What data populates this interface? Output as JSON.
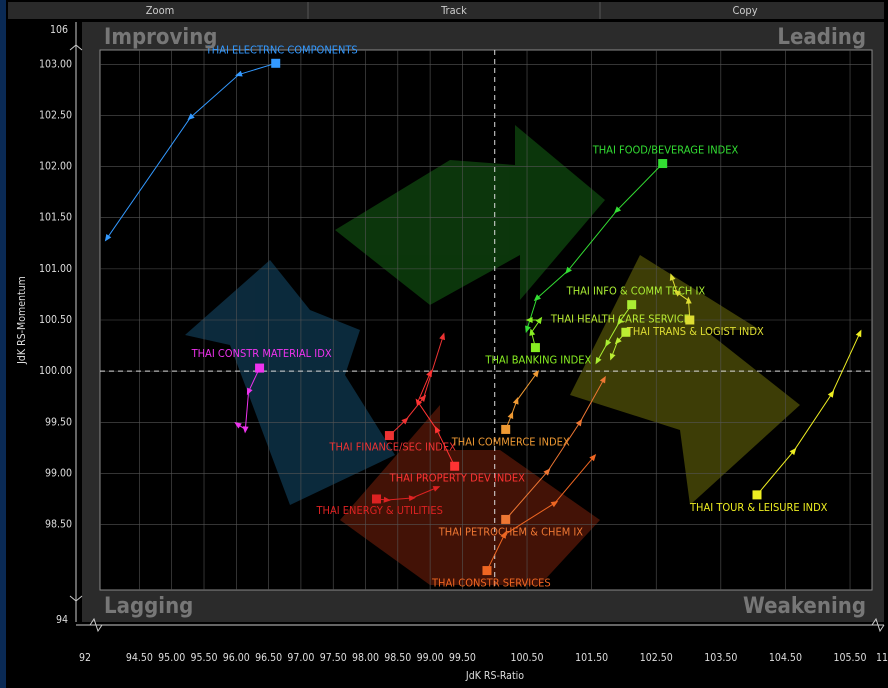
{
  "toolbar": [
    "Zoom",
    "Track",
    "Copy"
  ],
  "chart_data": {
    "type": "rrg",
    "x_label": "JdK RS-Ratio",
    "y_label": "JdK RS-Momentum",
    "quadrants": [
      "Improving",
      "Leading",
      "Lagging",
      "Weakening"
    ],
    "x_break_labels": [
      "92",
      "11"
    ],
    "y_break_labels": [
      "106",
      "94"
    ],
    "center": [
      100,
      100
    ],
    "xlim": [
      93.89,
      105.84
    ],
    "ylim": [
      97.86,
      103.14
    ],
    "xticks": [
      {
        "value": 94.5,
        "label": "94.50"
      },
      {
        "value": 95,
        "label": "95.00"
      },
      {
        "value": 95.5,
        "label": "95.50"
      },
      {
        "value": 96,
        "label": "96.00"
      },
      {
        "value": 96.5,
        "label": "96.50"
      },
      {
        "value": 97,
        "label": "97.00"
      },
      {
        "value": 97.5,
        "label": "97.50"
      },
      {
        "value": 98,
        "label": "98.00"
      },
      {
        "value": 98.5,
        "label": "98.50"
      },
      {
        "value": 99,
        "label": "99.00"
      },
      {
        "value": 99.5,
        "label": "99.50"
      },
      {
        "value": 100.5,
        "label": "100.50"
      },
      {
        "value": 101.5,
        "label": "101.50"
      },
      {
        "value": 102.5,
        "label": "102.50"
      },
      {
        "value": 103.5,
        "label": "103.50"
      },
      {
        "value": 104.5,
        "label": "104.50"
      },
      {
        "value": 105.5,
        "label": "105.50"
      }
    ],
    "yticks": [
      {
        "value": 98.5,
        "label": "98.50"
      },
      {
        "value": 99,
        "label": "99.00"
      },
      {
        "value": 99.5,
        "label": "99.50"
      },
      {
        "value": 100,
        "label": "100.00"
      },
      {
        "value": 100.5,
        "label": "100.50"
      },
      {
        "value": 101,
        "label": "101.00"
      },
      {
        "value": 101.5,
        "label": "101.50"
      },
      {
        "value": 102,
        "label": "102.00"
      },
      {
        "value": 102.5,
        "label": "102.50"
      },
      {
        "value": 103,
        "label": "103.00"
      }
    ],
    "grid": true,
    "series": [
      {
        "name": "THAI ELECTRNC COMPONENTS",
        "color": "#3399ff",
        "x": [
          94.0,
          95.29,
          96.04,
          96.61
        ],
        "values": [
          101.3,
          102.48,
          102.9,
          103.01
        ]
      },
      {
        "name": "THAI FOOD/BEVERAGE INDEX",
        "color": "#33dd33",
        "x": [
          100.5,
          100.65,
          101.13,
          101.89,
          102.6
        ],
        "values": [
          100.41,
          100.71,
          100.98,
          101.57,
          102.03
        ]
      },
      {
        "name": "THAI BANKING INDEX",
        "color": "#88ee22",
        "x": [
          100.54,
          100.7,
          100.57,
          100.63
        ],
        "values": [
          100.5,
          100.5,
          100.38,
          100.23
        ]
      },
      {
        "name": "THAI INFO & COMM TECH IX",
        "color": "#aaee33",
        "x": [
          101.59,
          101.74,
          101.93,
          102.12
        ],
        "values": [
          100.1,
          100.27,
          100.48,
          100.65
        ]
      },
      {
        "name": "THAI HEALTH CARE SERVICE",
        "color": "#bbee33",
        "x": [
          101.81,
          101.9,
          102.03
        ],
        "values": [
          100.14,
          100.29,
          100.38
        ]
      },
      {
        "name": "THAI TRANS & LOGIST INDX",
        "color": "#dddd33",
        "x": [
          102.74,
          102.82,
          103.0,
          103.02
        ],
        "values": [
          100.92,
          100.77,
          100.69,
          100.5
        ]
      },
      {
        "name": "THAI TOUR & LEISURE INDX",
        "color": "#eeee22",
        "x": [
          105.65,
          105.22,
          104.63,
          104.06
        ],
        "values": [
          100.37,
          99.78,
          99.22,
          98.79
        ]
      },
      {
        "name": "THAI CONSTR MATERIAL IDX",
        "color": "#ee33ee",
        "x": [
          96.02,
          96.14,
          96.19,
          96.36
        ],
        "values": [
          99.48,
          99.43,
          99.8,
          100.03
        ]
      },
      {
        "name": "THAI FINANCE/SEC INDEX",
        "color": "#ee3333",
        "x": [
          99.2,
          98.9,
          98.62,
          98.37
        ],
        "values": [
          100.34,
          99.74,
          99.52,
          99.37
        ]
      },
      {
        "name": "THAI PROPERTY DEV INDEX",
        "color": "#ff3333",
        "x": [
          99.0,
          98.81,
          99.1,
          99.38
        ],
        "values": [
          99.98,
          99.7,
          99.43,
          99.07
        ]
      },
      {
        "name": "THAI ENERGY & UTILITIES",
        "color": "#dd2222",
        "x": [
          99.1,
          98.72,
          98.33,
          98.17
        ],
        "values": [
          98.86,
          98.76,
          98.74,
          98.75
        ]
      },
      {
        "name": "THAI COMMERCE INDEX",
        "color": "#ee9933",
        "x": [
          100.65,
          100.34,
          100.26,
          100.17
        ],
        "values": [
          99.98,
          99.71,
          99.57,
          99.43
        ]
      },
      {
        "name": "THAI PETROCHEM & CHEM IX",
        "color": "#ee7733",
        "x": [
          101.69,
          101.32,
          100.82,
          100.17
        ],
        "values": [
          99.92,
          99.5,
          99.02,
          98.55
        ]
      },
      {
        "name": "THAI CONSTR SERVICES",
        "color": "#ee6622",
        "x": [
          101.53,
          100.93,
          100.15,
          99.88
        ],
        "values": [
          99.16,
          98.71,
          98.4,
          98.05
        ]
      }
    ]
  }
}
